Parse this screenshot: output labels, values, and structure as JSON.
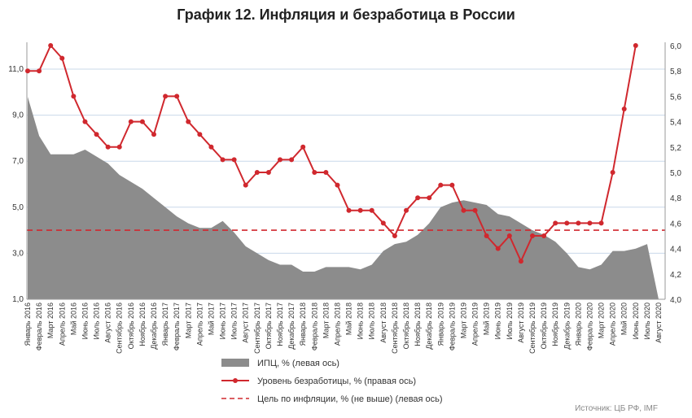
{
  "chart_data": {
    "type": "line",
    "title": "График 12. Инфляция и безработица в России",
    "categories": [
      "Январь 2016",
      "Февраль 2016",
      "Март 2016",
      "Апрель 2016",
      "Май 2016",
      "Июнь 2016",
      "Июль 2016",
      "Август 2016",
      "Сентябрь 2016",
      "Октябрь 2016",
      "Ноябрь 2016",
      "Декабрь 2016",
      "Январь 2017",
      "Февраль 2017",
      "Март 2017",
      "Апрель 2017",
      "Май 2017",
      "Июнь 2017",
      "Июль 2017",
      "Август 2017",
      "Сентябрь 2017",
      "Октябрь 2017",
      "Ноябрь 2017",
      "Декабрь 2017",
      "Январь 2018",
      "Февраль 2018",
      "Март 2018",
      "Апрель 2018",
      "Май 2018",
      "Июнь 2018",
      "Июль 2018",
      "Август 2018",
      "Сентябрь 2018",
      "Октябрь 2018",
      "Ноябрь 2018",
      "Декабрь 2018",
      "Январь 2019",
      "Февраль 2019",
      "Март 2019",
      "Апрель 2019",
      "Май 2019",
      "Июнь 2019",
      "Июль 2019",
      "Август 2019",
      "Сентябрь 2019",
      "Октябрь 2019",
      "Ноябрь 2019",
      "Декабрь 2019",
      "Январь 2020",
      "Февраль 2020",
      "Март 2020",
      "Апрель 2020",
      "Май 2020",
      "Июнь 2020",
      "Июль 2020",
      "Август 2020"
    ],
    "series": [
      {
        "name": "ИПЦ, % (левая ось)",
        "axis": "left",
        "kind": "area",
        "color": "#8c8c8c",
        "values": [
          9.8,
          8.1,
          7.3,
          7.3,
          7.3,
          7.5,
          7.2,
          6.9,
          6.4,
          6.1,
          5.8,
          5.4,
          5.0,
          4.6,
          4.3,
          4.1,
          4.1,
          4.4,
          3.9,
          3.3,
          3.0,
          2.7,
          2.5,
          2.5,
          2.2,
          2.2,
          2.4,
          2.4,
          2.4,
          2.3,
          2.5,
          3.1,
          3.4,
          3.5,
          3.8,
          4.3,
          5.0,
          5.2,
          5.3,
          5.2,
          5.1,
          4.7,
          4.6,
          4.3,
          4.0,
          3.8,
          3.5,
          3.0,
          2.4,
          2.3,
          2.5,
          3.1,
          3.1,
          3.2,
          3.4,
          1.0
        ]
      },
      {
        "name": "Уровень безработицы, % (правая ось)",
        "axis": "right",
        "kind": "line",
        "color": "#d0282e",
        "values": [
          5.8,
          5.8,
          6.0,
          5.9,
          5.6,
          5.4,
          5.3,
          5.2,
          5.2,
          5.4,
          5.4,
          5.3,
          5.6,
          5.6,
          5.4,
          5.3,
          5.2,
          5.1,
          5.1,
          4.9,
          5.0,
          5.0,
          5.1,
          5.1,
          5.2,
          5.0,
          5.0,
          4.9,
          4.7,
          4.7,
          4.7,
          4.6,
          4.5,
          4.7,
          4.8,
          4.8,
          4.9,
          4.9,
          4.7,
          4.7,
          4.5,
          4.4,
          4.5,
          4.3,
          4.5,
          4.5,
          4.6,
          4.6,
          4.6,
          4.6,
          4.6,
          5.0,
          5.5,
          6.0,
          null,
          null
        ]
      },
      {
        "name": "Цель по инфляции, % (не выше) (левая ось)",
        "axis": "left",
        "kind": "dashed-line",
        "color": "#d0282e",
        "values": [
          4,
          4,
          4,
          4,
          4,
          4,
          4,
          4,
          4,
          4,
          4,
          4,
          4,
          4,
          4,
          4,
          4,
          4,
          4,
          4,
          4,
          4,
          4,
          4,
          4,
          4,
          4,
          4,
          4,
          4,
          4,
          4,
          4,
          4,
          4,
          4,
          4,
          4,
          4,
          4,
          4,
          4,
          4,
          4,
          4,
          4,
          4,
          4,
          4,
          4,
          4,
          4,
          4,
          4,
          4,
          4
        ]
      }
    ],
    "y_left": {
      "ylim": [
        1.0,
        12.0
      ],
      "ticks": [
        "1,0",
        "3,0",
        "5,0",
        "7,0",
        "9,0",
        "11,0"
      ],
      "tick_values": [
        1,
        3,
        5,
        7,
        9,
        11
      ]
    },
    "y_right": {
      "ylim": [
        4.0,
        6.0
      ],
      "ticks": [
        "4,0",
        "4,2",
        "4,4",
        "4,6",
        "4,8",
        "5,0",
        "5,2",
        "5,4",
        "5,6",
        "5,8",
        "6,0"
      ],
      "tick_values": [
        4.0,
        4.2,
        4.4,
        4.6,
        4.8,
        5.0,
        5.2,
        5.4,
        5.6,
        5.8,
        6.0
      ]
    },
    "grid": "horizontal",
    "legend_position": "bottom",
    "source": "Источник: ЦБ РФ, IMF"
  }
}
